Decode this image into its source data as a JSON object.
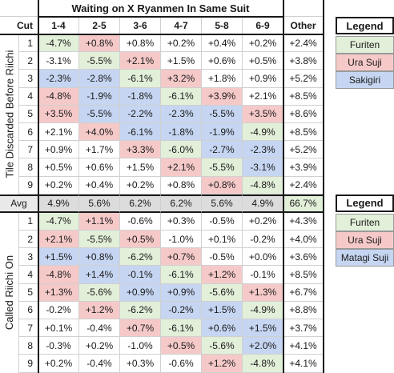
{
  "title": "Waiting on X Ryanmen In Same Suit",
  "headers": {
    "cut": "Cut",
    "columns": [
      "1-4",
      "2-5",
      "3-6",
      "4-7",
      "5-8",
      "6-9"
    ],
    "other": "Other"
  },
  "section1": {
    "side_label": "Tile Discarded Before Riichi",
    "rows": [
      {
        "cut": "1",
        "values": [
          "-4.7%",
          "+0.8%",
          "+0.8%",
          "+0.2%",
          "+0.4%",
          "+0.2%"
        ],
        "colors": [
          "g",
          "r",
          "",
          "",
          "",
          ""
        ],
        "other": "+2.4%"
      },
      {
        "cut": "2",
        "values": [
          "-3.1%",
          "-5.5%",
          "+2.1%",
          "+1.5%",
          "+0.6%",
          "+0.5%"
        ],
        "colors": [
          "",
          "g",
          "r",
          "",
          "",
          ""
        ],
        "other": "+3.8%"
      },
      {
        "cut": "3",
        "values": [
          "-2.3%",
          "-2.8%",
          "-6.1%",
          "+3.2%",
          "+1.8%",
          "+0.9%"
        ],
        "colors": [
          "b",
          "b",
          "g",
          "r",
          "",
          ""
        ],
        "other": "+5.2%"
      },
      {
        "cut": "4",
        "values": [
          "-4.8%",
          "-1.9%",
          "-1.8%",
          "-6.1%",
          "+3.9%",
          "+2.1%"
        ],
        "colors": [
          "r",
          "b",
          "b",
          "g",
          "r",
          ""
        ],
        "other": "+8.5%"
      },
      {
        "cut": "5",
        "values": [
          "+3.5%",
          "-5.5%",
          "-2.2%",
          "-2.3%",
          "-5.5%",
          "+3.5%"
        ],
        "colors": [
          "r",
          "b",
          "b",
          "b",
          "b",
          "r"
        ],
        "other": "+8.6%"
      },
      {
        "cut": "6",
        "values": [
          "+2.1%",
          "+4.0%",
          "-6.1%",
          "-1.8%",
          "-1.9%",
          "-4.9%"
        ],
        "colors": [
          "",
          "r",
          "b",
          "b",
          "b",
          "g"
        ],
        "other": "+8.5%"
      },
      {
        "cut": "7",
        "values": [
          "+0.9%",
          "+1.7%",
          "+3.3%",
          "-6.0%",
          "-2.7%",
          "-2.3%"
        ],
        "colors": [
          "",
          "",
          "r",
          "g",
          "b",
          "b"
        ],
        "other": "+5.2%"
      },
      {
        "cut": "8",
        "values": [
          "+0.5%",
          "+0.6%",
          "+1.5%",
          "+2.1%",
          "-5.5%",
          "-3.1%"
        ],
        "colors": [
          "",
          "",
          "",
          "r",
          "g",
          "b"
        ],
        "other": "+3.9%"
      },
      {
        "cut": "9",
        "values": [
          "+0.2%",
          "+0.4%",
          "+0.2%",
          "+0.8%",
          "+0.8%",
          "-4.8%"
        ],
        "colors": [
          "",
          "",
          "",
          "",
          "r",
          "g"
        ],
        "other": "+2.4%"
      }
    ]
  },
  "avg": {
    "label": "Avg",
    "values": [
      "4.9%",
      "5.6%",
      "6.2%",
      "6.2%",
      "5.6%",
      "4.9%"
    ],
    "other": "66.7%"
  },
  "section2": {
    "side_label": "Called Riichi On",
    "rows": [
      {
        "cut": "1",
        "values": [
          "-4.7%",
          "+1.1%",
          "-0.6%",
          "+0.3%",
          "-0.5%",
          "+0.2%"
        ],
        "colors": [
          "g",
          "r",
          "",
          "",
          "",
          ""
        ],
        "other": "+4.3%"
      },
      {
        "cut": "2",
        "values": [
          "+2.1%",
          "-5.5%",
          "+0.5%",
          "-1.0%",
          "+0.1%",
          "-0.2%"
        ],
        "colors": [
          "r",
          "g",
          "r",
          "",
          "",
          ""
        ],
        "other": "+4.0%"
      },
      {
        "cut": "3",
        "values": [
          "+1.5%",
          "+0.8%",
          "-6.2%",
          "+0.7%",
          "-0.5%",
          "+0.0%"
        ],
        "colors": [
          "b",
          "b",
          "g",
          "r",
          "",
          ""
        ],
        "other": "+3.6%"
      },
      {
        "cut": "4",
        "values": [
          "-4.8%",
          "+1.4%",
          "-0.1%",
          "-6.1%",
          "+1.2%",
          "-0.1%"
        ],
        "colors": [
          "r",
          "b",
          "b",
          "g",
          "r",
          ""
        ],
        "other": "+8.5%"
      },
      {
        "cut": "5",
        "values": [
          "+1.3%",
          "-5.6%",
          "+0.9%",
          "+0.9%",
          "-5.6%",
          "+1.3%"
        ],
        "colors": [
          "r",
          "g",
          "b",
          "b",
          "g",
          "r"
        ],
        "other": "+6.7%"
      },
      {
        "cut": "6",
        "values": [
          "-0.2%",
          "+1.2%",
          "-6.2%",
          "-0.2%",
          "+1.5%",
          "-4.9%"
        ],
        "colors": [
          "",
          "r",
          "g",
          "b",
          "b",
          "g"
        ],
        "other": "+8.8%"
      },
      {
        "cut": "7",
        "values": [
          "+0.1%",
          "-0.4%",
          "+0.7%",
          "-6.1%",
          "+0.6%",
          "+1.5%"
        ],
        "colors": [
          "",
          "",
          "r",
          "g",
          "b",
          "b"
        ],
        "other": "+3.7%"
      },
      {
        "cut": "8",
        "values": [
          "-0.3%",
          "+0.2%",
          "-1.0%",
          "+0.5%",
          "-5.6%",
          "+2.0%"
        ],
        "colors": [
          "",
          "",
          "",
          "r",
          "g",
          "b"
        ],
        "other": "+4.1%"
      },
      {
        "cut": "9",
        "values": [
          "+0.2%",
          "-0.4%",
          "+0.3%",
          "-0.6%",
          "+1.2%",
          "-4.8%"
        ],
        "colors": [
          "",
          "",
          "",
          "",
          "r",
          "g"
        ],
        "other": "+4.1%"
      }
    ]
  },
  "legend1": {
    "title": "Legend",
    "items": [
      {
        "label": "Furiten",
        "color": "g"
      },
      {
        "label": "Ura Suji",
        "color": "r"
      },
      {
        "label": "Sakigiri",
        "color": "b"
      }
    ]
  },
  "legend2": {
    "title": "Legend",
    "items": [
      {
        "label": "Furiten",
        "color": "g"
      },
      {
        "label": "Ura Suji",
        "color": "r"
      },
      {
        "label": "Matagi Suji",
        "color": "b"
      }
    ]
  },
  "colors": {
    "furiten_green": "#e2efd9",
    "ura_suji_red": "#f6c9c9",
    "sakigiri_blue": "#c6d6f2",
    "avg_gray": "#dcdcdc"
  }
}
